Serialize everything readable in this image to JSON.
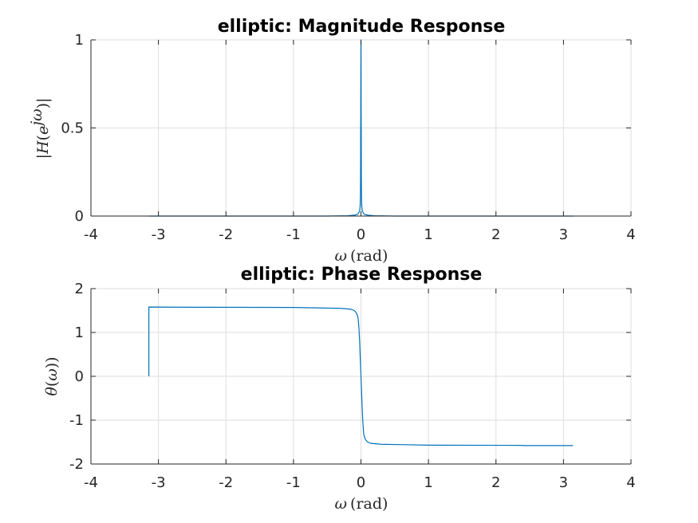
{
  "chart_data": [
    {
      "type": "line",
      "title": "elliptic: Magnitude Response",
      "xlabel": "ω (rad)",
      "ylabel": "|H(e^jω)|",
      "xlim": [
        -4,
        4
      ],
      "ylim": [
        0,
        1
      ],
      "xticks": [
        "-4",
        "-3",
        "-2",
        "-1",
        "0",
        "1",
        "2",
        "3",
        "4"
      ],
      "yticks": [
        "0",
        "0.5",
        "1"
      ],
      "grid": true,
      "color": "#0072BD",
      "series": [
        {
          "x": [
            -3.1416,
            -2.0,
            -1.0,
            -0.5,
            -0.2,
            -0.1,
            -0.05,
            -0.03,
            -0.02,
            -0.012,
            -0.01,
            -0.008,
            -0.006,
            -0.005,
            -0.004,
            -0.003,
            -0.002,
            -0.001,
            0.0,
            0.001,
            0.002,
            0.003,
            0.004,
            0.005,
            0.006,
            0.008,
            0.01,
            0.012,
            0.02,
            0.03,
            0.05,
            0.1,
            0.2,
            0.5,
            1.0,
            2.0,
            3.1416
          ],
          "y": [
            0.0,
            0.0,
            0.0,
            0.0,
            0.002,
            0.005,
            0.01,
            0.02,
            0.03,
            0.06,
            0.09,
            0.12,
            0.2,
            0.35,
            0.5,
            0.58,
            0.8,
            0.95,
            1.0,
            0.95,
            0.8,
            0.58,
            0.5,
            0.35,
            0.2,
            0.12,
            0.09,
            0.06,
            0.03,
            0.02,
            0.01,
            0.005,
            0.002,
            0.0,
            0.0,
            0.0,
            0.0
          ]
        }
      ]
    },
    {
      "type": "line",
      "title": "elliptic: Phase Response",
      "xlabel": "ω (rad)",
      "ylabel": "θ(ω))",
      "xlim": [
        -4,
        4
      ],
      "ylim": [
        -2,
        2
      ],
      "xticks": [
        "-4",
        "-3",
        "-2",
        "-1",
        "0",
        "1",
        "2",
        "3",
        "4"
      ],
      "yticks": [
        "-2",
        "-1",
        "0",
        "1",
        "2"
      ],
      "grid": true,
      "color": "#0072BD",
      "series": [
        {
          "x": [
            -3.1416,
            -3.1416,
            -2.5,
            -1.0,
            -0.3,
            -0.15,
            -0.1,
            -0.07,
            -0.05,
            -0.04,
            -0.03,
            -0.02,
            -0.01,
            0.0,
            0.01,
            0.02,
            0.03,
            0.04,
            0.05,
            0.07,
            0.1,
            0.15,
            0.3,
            1.0,
            2.4,
            2.4,
            3.1416
          ],
          "y": [
            0.0,
            1.58,
            1.575,
            1.57,
            1.55,
            1.53,
            1.5,
            1.45,
            1.38,
            1.3,
            1.1,
            0.8,
            0.4,
            0.0,
            -0.4,
            -0.8,
            -1.1,
            -1.3,
            -1.38,
            -1.45,
            -1.5,
            -1.53,
            -1.55,
            -1.57,
            -1.575,
            -1.58,
            -1.58
          ]
        }
      ]
    }
  ]
}
